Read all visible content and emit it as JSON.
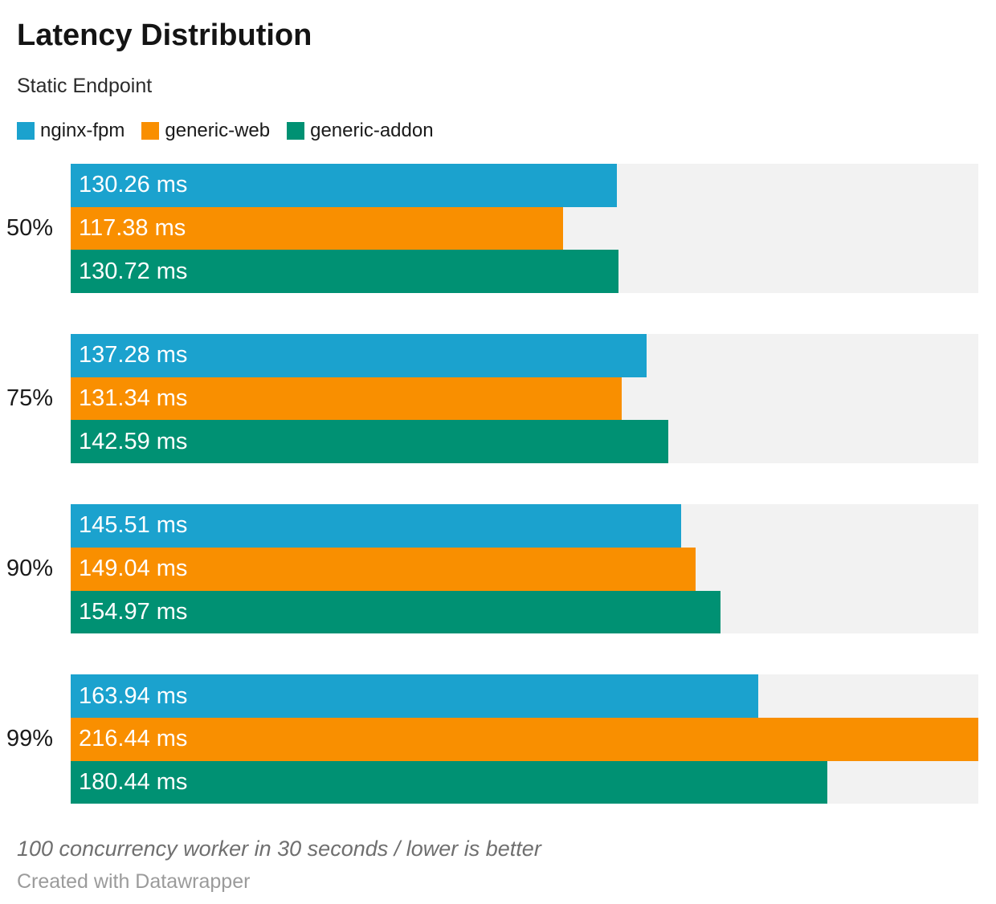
{
  "header": {
    "title": "Latency Distribution",
    "subtitle": "Static Endpoint"
  },
  "legend": {
    "items": [
      {
        "label": "nginx-fpm",
        "color": "#1BA2CE"
      },
      {
        "label": "generic-web",
        "color": "#F98F00"
      },
      {
        "label": "generic-addon",
        "color": "#009173"
      }
    ]
  },
  "chart_data": {
    "type": "bar",
    "orientation": "horizontal",
    "title": "Latency Distribution",
    "subtitle": "Static Endpoint",
    "categories": [
      "50%",
      "75%",
      "90%",
      "99%"
    ],
    "series": [
      {
        "name": "nginx-fpm",
        "color": "#1BA2CE",
        "values": [
          130.26,
          137.28,
          145.51,
          163.94
        ],
        "labels": [
          "130.26 ms",
          "137.28 ms",
          "145.51 ms",
          "163.94 ms"
        ]
      },
      {
        "name": "generic-web",
        "color": "#F98F00",
        "values": [
          117.38,
          131.34,
          149.04,
          216.44
        ],
        "labels": [
          "117.38 ms",
          "131.34 ms",
          "149.04 ms",
          "216.44 ms"
        ]
      },
      {
        "name": "generic-addon",
        "color": "#009173",
        "values": [
          130.72,
          142.59,
          154.97,
          180.44
        ],
        "labels": [
          "130.72 ms",
          "142.59 ms",
          "154.97 ms",
          "180.44 ms"
        ]
      }
    ],
    "value_suffix": " ms",
    "x_min": 0,
    "x_max": 216.44,
    "track_color": "#F2F2F2",
    "label_color": "#ffffff",
    "legend_position": "top",
    "grid": false
  },
  "footer": {
    "note": "100 concurrency worker in 30 seconds / lower is better",
    "attribution": "Created with Datawrapper"
  }
}
